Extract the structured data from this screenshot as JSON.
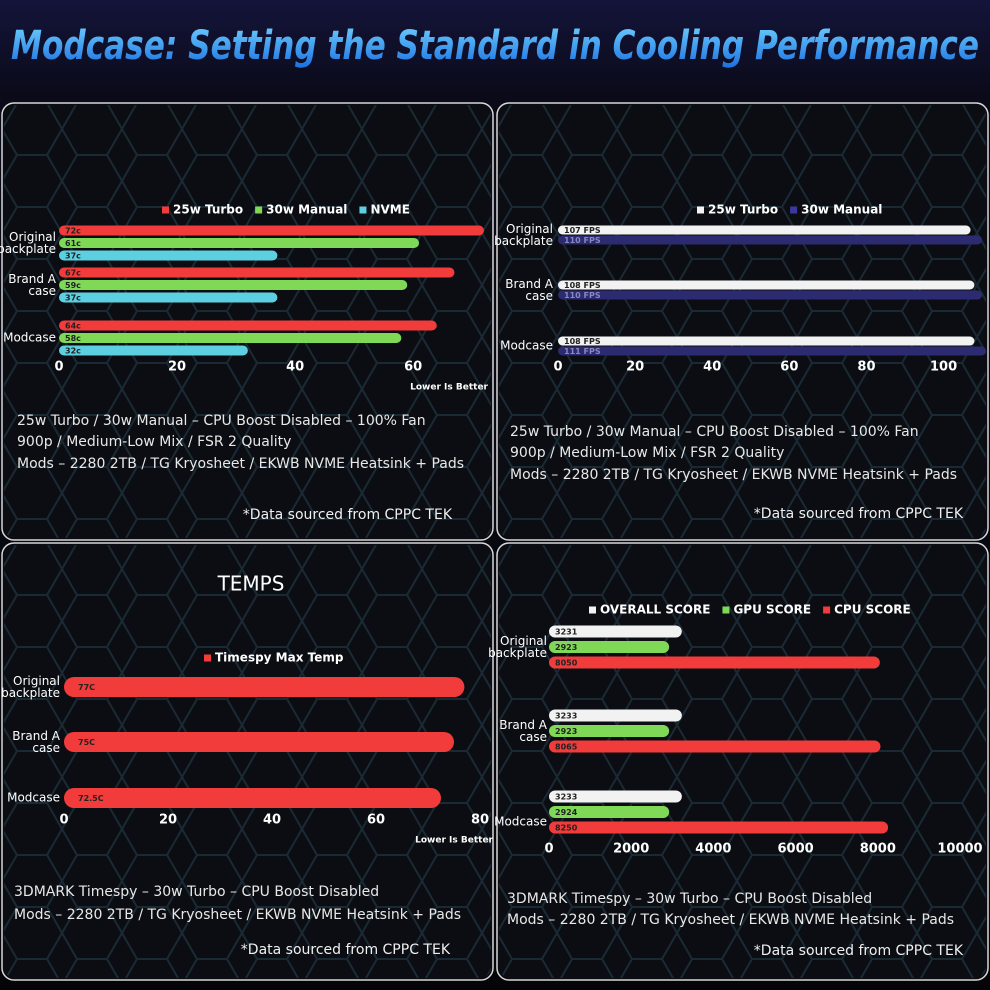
{
  "title": "Modcase: Setting the Standard in Cooling Performance",
  "chart_data": [
    {
      "type": "bar",
      "orientation": "horizontal",
      "categories": [
        "Original\nbackplate",
        "Brand A\ncase",
        "Modcase"
      ],
      "series": [
        {
          "name": "25w Turbo",
          "color": "#f23b3b",
          "values": [
            72,
            67,
            64
          ],
          "value_labels": [
            "72c",
            "67c",
            "64c"
          ]
        },
        {
          "name": "30w Manual",
          "color": "#7fd957",
          "values": [
            61,
            59,
            58
          ],
          "value_labels": [
            "61c",
            "59c",
            "58c"
          ]
        },
        {
          "name": "NVME",
          "color": "#5ccfe0",
          "values": [
            37,
            37,
            32
          ],
          "value_labels": [
            "37c",
            "37c",
            "32c"
          ]
        }
      ],
      "xlim": [
        0,
        72
      ],
      "xticks": [
        0,
        20,
        40,
        60
      ],
      "annotation": "Lower Is Better",
      "notes": [
        "25w Turbo / 30w Manual – CPU Boost Disabled – 100% Fan",
        "900p / Medium-Low Mix / FSR 2 Quality",
        "Mods – 2280 2TB / TG Kryosheet / EKWB NVME Heatsink + Pads"
      ],
      "source": "*Data sourced from CPPC TEK"
    },
    {
      "type": "bar",
      "orientation": "horizontal",
      "categories": [
        "Original\nbackplate",
        "Brand A\ncase",
        "Modcase"
      ],
      "series": [
        {
          "name": "25w Turbo",
          "color": "#f2f2f2",
          "values": [
            107,
            108,
            108
          ],
          "value_labels": [
            "107 FPS",
            "108 FPS",
            "108 FPS"
          ]
        },
        {
          "name": "30w Manual",
          "color": "#2c2a70",
          "values": [
            110,
            110,
            111
          ],
          "value_labels": [
            "110 FPS",
            "110 FPS",
            "111 FPS"
          ]
        }
      ],
      "xlim": [
        0,
        111
      ],
      "xticks": [
        0,
        20,
        40,
        60,
        80,
        100
      ],
      "notes": [
        "25w Turbo / 30w Manual – CPU Boost Disabled – 100% Fan",
        "900p / Medium-Low Mix / FSR 2 Quality",
        "Mods – 2280 2TB / TG Kryosheet / EKWB NVME Heatsink + Pads"
      ],
      "source": "*Data sourced from CPPC TEK"
    },
    {
      "type": "bar",
      "orientation": "horizontal",
      "title": "TEMPS",
      "categories": [
        "Original\nbackplate",
        "Brand A\ncase",
        "Modcase"
      ],
      "series": [
        {
          "name": "Timespy Max Temp",
          "color": "#f23b3b",
          "values": [
            77,
            75,
            72.5
          ],
          "value_labels": [
            "77C",
            "75C",
            "72.5C"
          ]
        }
      ],
      "xlim": [
        0,
        80
      ],
      "xticks": [
        0,
        20,
        40,
        60,
        80
      ],
      "annotation": "Lower Is Better",
      "notes": [
        "3DMARK Timespy – 30w Turbo – CPU Boost Disabled",
        "Mods – 2280 2TB / TG Kryosheet / EKWB NVME Heatsink + Pads"
      ],
      "source": "*Data sourced from CPPC TEK"
    },
    {
      "type": "bar",
      "orientation": "horizontal",
      "categories": [
        "Original\nbackplate",
        "Brand A\ncase",
        "Modcase"
      ],
      "series": [
        {
          "name": "OVERALL SCORE",
          "color": "#f2f2f2",
          "values": [
            3231,
            3233,
            3233
          ]
        },
        {
          "name": "GPU SCORE",
          "color": "#7fd957",
          "values": [
            2923,
            2923,
            2924
          ]
        },
        {
          "name": "CPU SCORE",
          "color": "#f23b3b",
          "values": [
            8050,
            8065,
            8250
          ]
        }
      ],
      "xlim": [
        0,
        10000
      ],
      "xticks": [
        0,
        2000,
        4000,
        6000,
        8000,
        10000
      ],
      "notes": [
        "3DMARK Timespy – 30w Turbo – CPU Boost Disabled",
        "Mods – 2280 2TB / TG Kryosheet / EKWB NVME Heatsink + Pads"
      ],
      "source": "*Data sourced from CPPC TEK"
    }
  ]
}
